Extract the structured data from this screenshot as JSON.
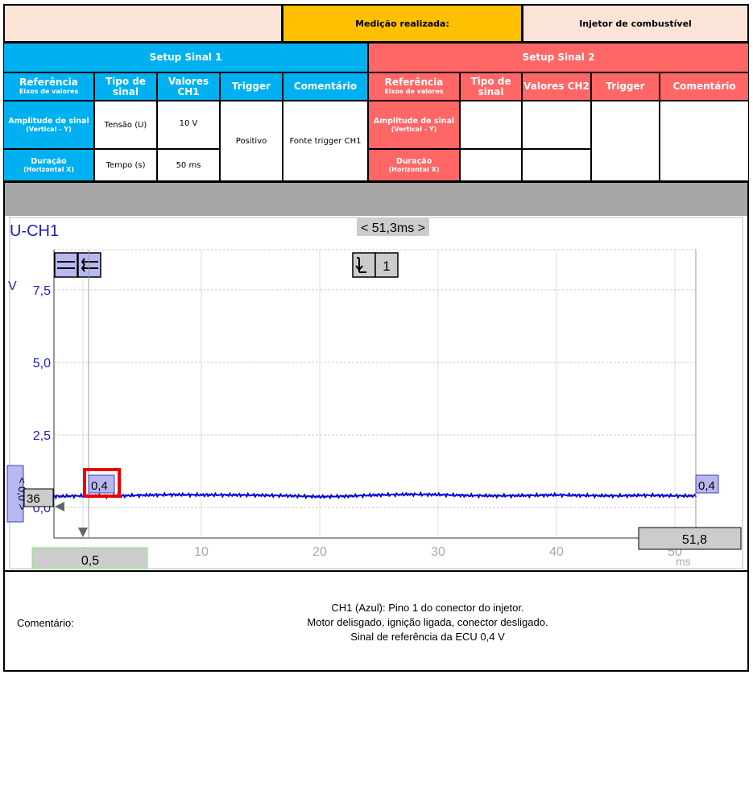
{
  "header": {
    "label": "Medição realizada:",
    "value": "Injetor de combustível",
    "colors": {
      "peach": "#fde4d8",
      "orange": "#ffc000"
    }
  },
  "setup1": {
    "title": "Setup Sinal 1",
    "color": "#00b0f0",
    "cols": {
      "ref": "Referência",
      "ref_sub": "Eixos de valores",
      "tipo": "Tipo de sinal",
      "valores": "Valores CH1",
      "trigger": "Trigger",
      "comentario": "Comentário"
    },
    "rows": [
      {
        "label": "Amplitude de sinal",
        "sub": "(Vertical - Y)",
        "tipo": "Tensão (U)",
        "valor": "10 V"
      },
      {
        "label": "Duração",
        "sub": "(Horizontal X)",
        "tipo": "Tempo (s)",
        "valor": "50 ms"
      }
    ],
    "trigger": "Positivo",
    "comentario": "Fonte trigger CH1"
  },
  "setup2": {
    "title": "Setup Sinal 2",
    "color": "#ff6666",
    "cols": {
      "ref": "Referência",
      "ref_sub": "Eixos de valores",
      "tipo": "Tipo de sinal",
      "valores": "Valores CH2",
      "trigger": "Trigger",
      "comentario": "Comentário"
    },
    "rows": [
      {
        "label": "Amplitude de sinal",
        "sub": "(Vertical - Y)"
      },
      {
        "label": "Duração",
        "sub": "(Horizontal X)"
      }
    ]
  },
  "scope": {
    "channel": "U-CH1",
    "time_window": "< 51,3ms >",
    "trigger_channel": "1",
    "y_offset_label": "< 0,0 >",
    "y_marker": "36",
    "cursor_left_value": "0,4",
    "cursor_right_value": "0,4",
    "cursor_left_time": "0,5",
    "cursor_right_time": "51,8",
    "trace_color": "#0000dd"
  },
  "chart_data": {
    "type": "line",
    "ylabel": "V",
    "xlabel": "ms",
    "xlim": [
      -2.5,
      52.5
    ],
    "ylim": [
      -1,
      8.5
    ],
    "xticks": [
      "0",
      "10",
      "20",
      "30",
      "40",
      "50"
    ],
    "yticks": [
      "0,0",
      "2,5",
      "5,0",
      "7,5"
    ],
    "grid": true,
    "series": [
      {
        "x": [
          -2.5,
          0,
          2.5,
          5,
          7.5,
          10,
          12.5,
          15,
          17.5,
          20,
          22.5,
          25,
          27.5,
          30,
          32.5,
          35,
          37.5,
          40,
          42.5,
          45,
          47.5,
          50,
          51.8
        ],
        "y": [
          0.38,
          0.4,
          0.39,
          0.42,
          0.44,
          0.43,
          0.43,
          0.42,
          0.4,
          0.37,
          0.39,
          0.43,
          0.45,
          0.44,
          0.41,
          0.4,
          0.41,
          0.43,
          0.41,
          0.4,
          0.42,
          0.4,
          0.4
        ]
      }
    ]
  },
  "comment": {
    "label": "Comentário:",
    "lines": [
      "CH1 (Azul): Pino 1 do conector do injetor.",
      "Motor delisgado, ignição ligada, conector desligado.",
      "Sinal de referência da ECU 0,4 V"
    ]
  }
}
